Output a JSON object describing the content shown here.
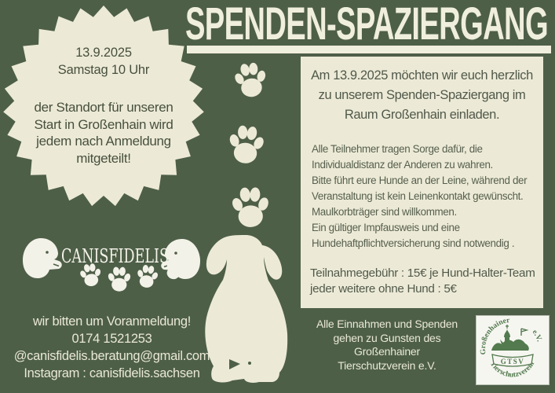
{
  "title": {
    "text": "SPENDEN-SPAZIERGANG"
  },
  "badge": {
    "date": "13.9.2025",
    "day_time": "Samstag 10 Uhr",
    "lines": [
      "der Standort für unseren",
      "Start in Großenhain wird",
      "jedem nach Anmeldung",
      "mitgeteilt!"
    ]
  },
  "invite": {
    "intro_lines": [
      "Am 13.9.2025 möchten wir euch herzlich",
      "zu unserem Spenden-Spaziergang im",
      "Raum Großenhain einladen."
    ],
    "rules_lines": [
      "Alle Teilnehmer tragen Sorge dafür, die",
      "Individualdistanz der Anderen zu wahren.",
      "Bitte führt  eure Hunde an der Leine, während der",
      "Veranstaltung ist kein Leinenkontakt gewünscht.",
      "Maulkorbträger sind willkommen.",
      "Ein gültiger Impfausweis und eine",
      "Hundehaftpflichtversicherung sind notwendig ."
    ],
    "fee_lines": [
      "Teilnahmegebühr : 15€ je Hund-Halter-Team",
      "jeder weitere ohne Hund : 5€"
    ]
  },
  "canisfidelis": {
    "wordmark": "CANISFIDELIS"
  },
  "contact": {
    "lines": [
      "wir bitten um Voranmeldung!",
      "0174 1521253",
      "@canisfidelis.beratung@gmail.com",
      "Instagram : canisfidelis.sachsen"
    ]
  },
  "donation": {
    "lines": [
      "Alle Einnahmen und Spenden",
      "gehen zu Gunsten des",
      "Großenhainer",
      "Tierschutzverein e.V."
    ]
  },
  "gtsv": {
    "ring_text_left": "Großenhainer",
    "ring_text_bottom": "Tierschutzverein",
    "ring_text_right": "e.V.",
    "acronym": "GTSV"
  },
  "colors": {
    "background_green": "#4e5f48",
    "cream": "#ecead7",
    "badge_text": "#47503d",
    "panel_text": "#565f4d",
    "light_text": "#e9e8d6",
    "seal_green": "#527a4e",
    "seal_white": "#f6f6f1"
  },
  "graphics": {
    "badge_shape": "starburst-seal",
    "paw_icon": "paw-print",
    "dog_silhouette": "sitting-puppy-silhouette",
    "dog_head_icons": "dog-head-silhouettes",
    "seal": "gtsv-club-seal"
  }
}
